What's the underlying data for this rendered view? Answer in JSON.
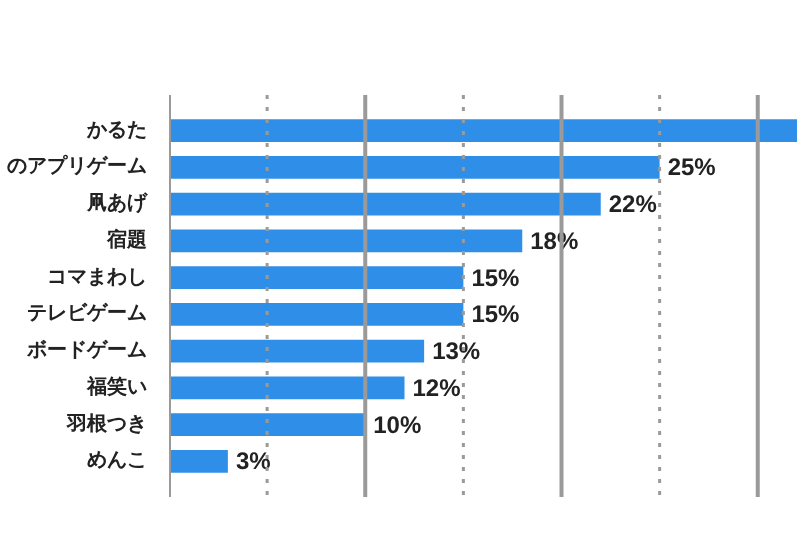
{
  "chart_data": {
    "type": "bar",
    "orientation": "horizontal",
    "categories": [
      "かるた",
      "のアプリゲーム",
      "凧あげ",
      "宿題",
      "コマまわし",
      "テレビゲーム",
      "ボードゲーム",
      "福笑い",
      "羽根つき",
      "めんこ"
    ],
    "values": [
      32,
      25,
      22,
      18,
      15,
      15,
      13,
      12,
      10,
      3
    ],
    "value_labels": [
      null,
      "25%",
      "22%",
      "18%",
      "15%",
      "15%",
      "13%",
      "12%",
      "10%",
      "3%"
    ],
    "color": "#2f8fe8",
    "xlim": [
      0,
      32
    ],
    "xticks": [
      {
        "value": 0,
        "label": null
      },
      {
        "value": 5,
        "label": null
      },
      {
        "value": 10,
        "label": null
      },
      {
        "value": 15,
        "label": null
      },
      {
        "value": 20,
        "label": null
      },
      {
        "value": 25,
        "label": null
      },
      {
        "value": 30,
        "label": null
      }
    ],
    "grid": "x",
    "tick_labels": "y"
  }
}
